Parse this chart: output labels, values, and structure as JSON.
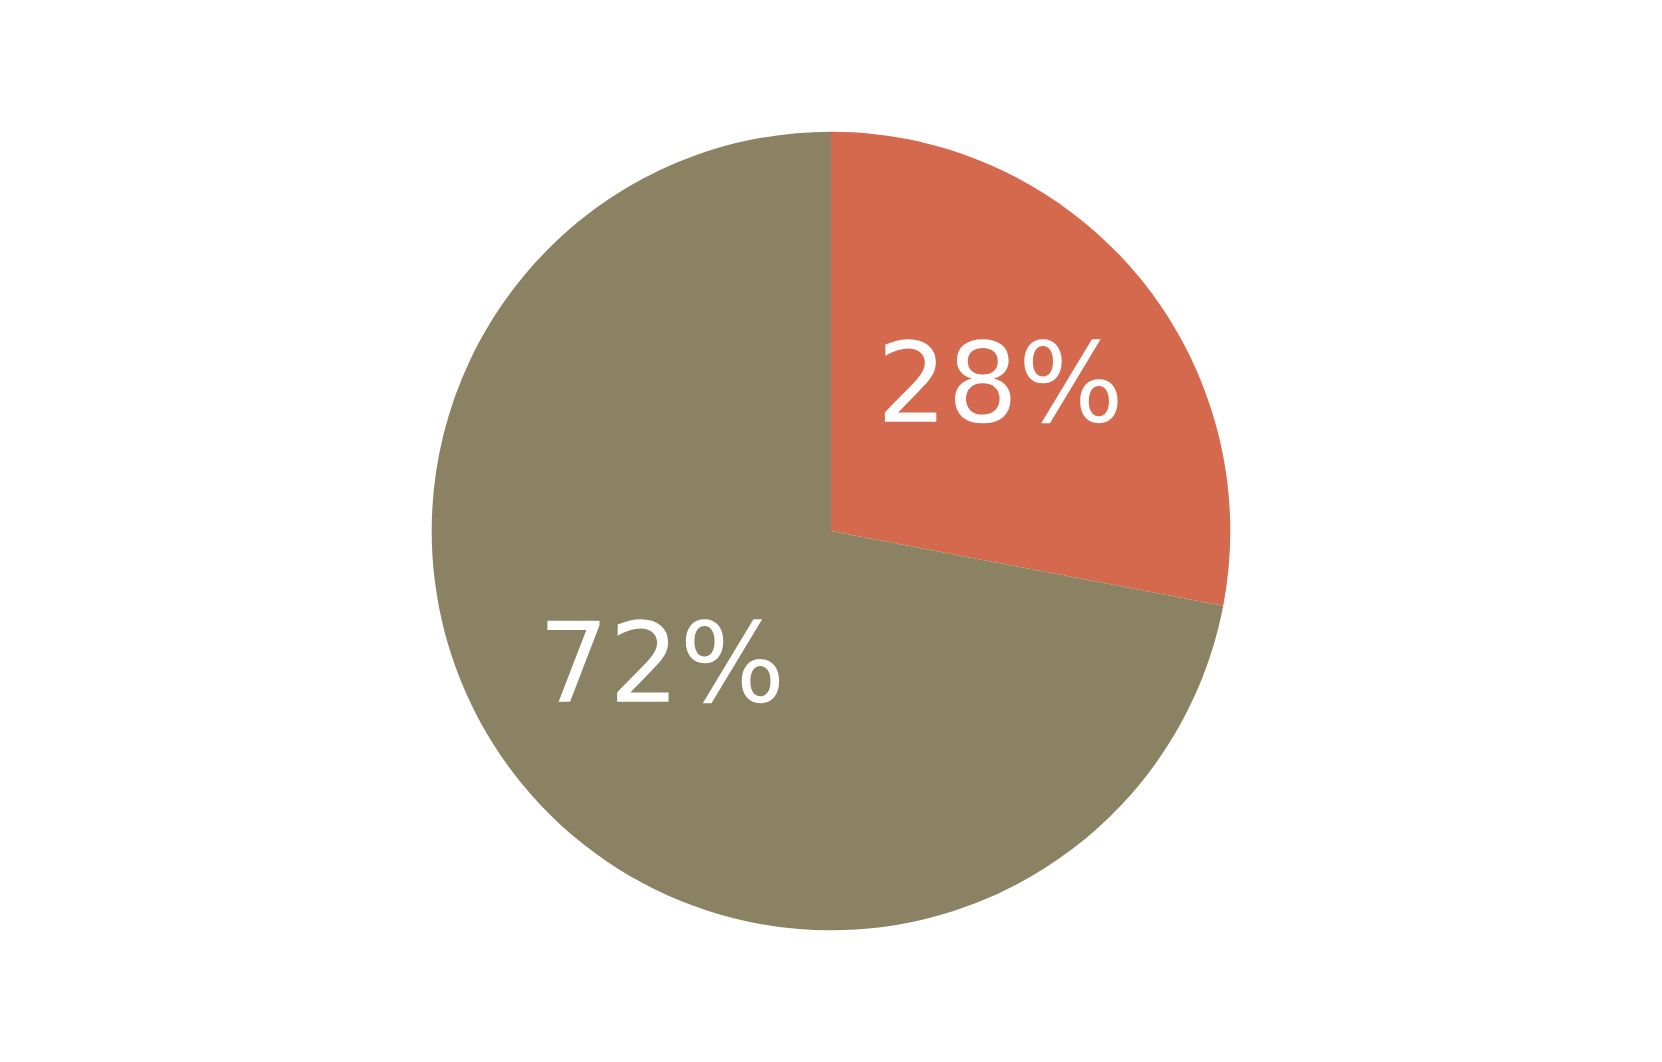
{
  "chart_data": {
    "type": "pie",
    "categories": [
      null,
      null
    ],
    "values": [
      28,
      72
    ],
    "colors": [
      "#d5694e",
      "#8a8262"
    ],
    "value_labels": [
      "28%",
      "72%"
    ]
  }
}
